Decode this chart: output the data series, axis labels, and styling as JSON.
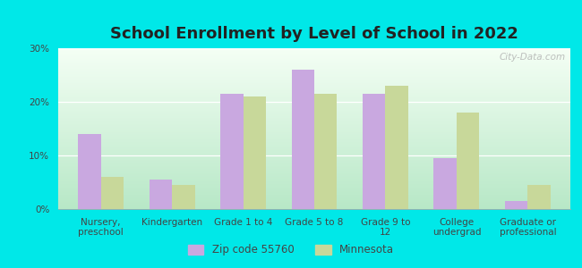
{
  "title": "School Enrollment by Level of School in 2022",
  "categories": [
    "Nursery,\npreschool",
    "Kindergarten",
    "Grade 1 to 4",
    "Grade 5 to 8",
    "Grade 9 to\n12",
    "College\nundergrad",
    "Graduate or\nprofessional"
  ],
  "zip_values": [
    14.0,
    5.5,
    21.5,
    26.0,
    21.5,
    9.5,
    1.5
  ],
  "mn_values": [
    6.0,
    4.5,
    21.0,
    21.5,
    23.0,
    18.0,
    4.5
  ],
  "zip_color": "#c9a8e0",
  "mn_color": "#c8d89a",
  "background_outer": "#00e8e8",
  "gradient_top": "#f5faf5",
  "gradient_bottom": "#b8e8c8",
  "ylim": [
    0,
    30
  ],
  "yticks": [
    0,
    10,
    20,
    30
  ],
  "legend_zip_label": "Zip code 55760",
  "legend_mn_label": "Minnesota",
  "bar_width": 0.32,
  "title_fontsize": 13,
  "tick_fontsize": 7.5,
  "legend_fontsize": 8.5,
  "watermark": "City-Data.com"
}
